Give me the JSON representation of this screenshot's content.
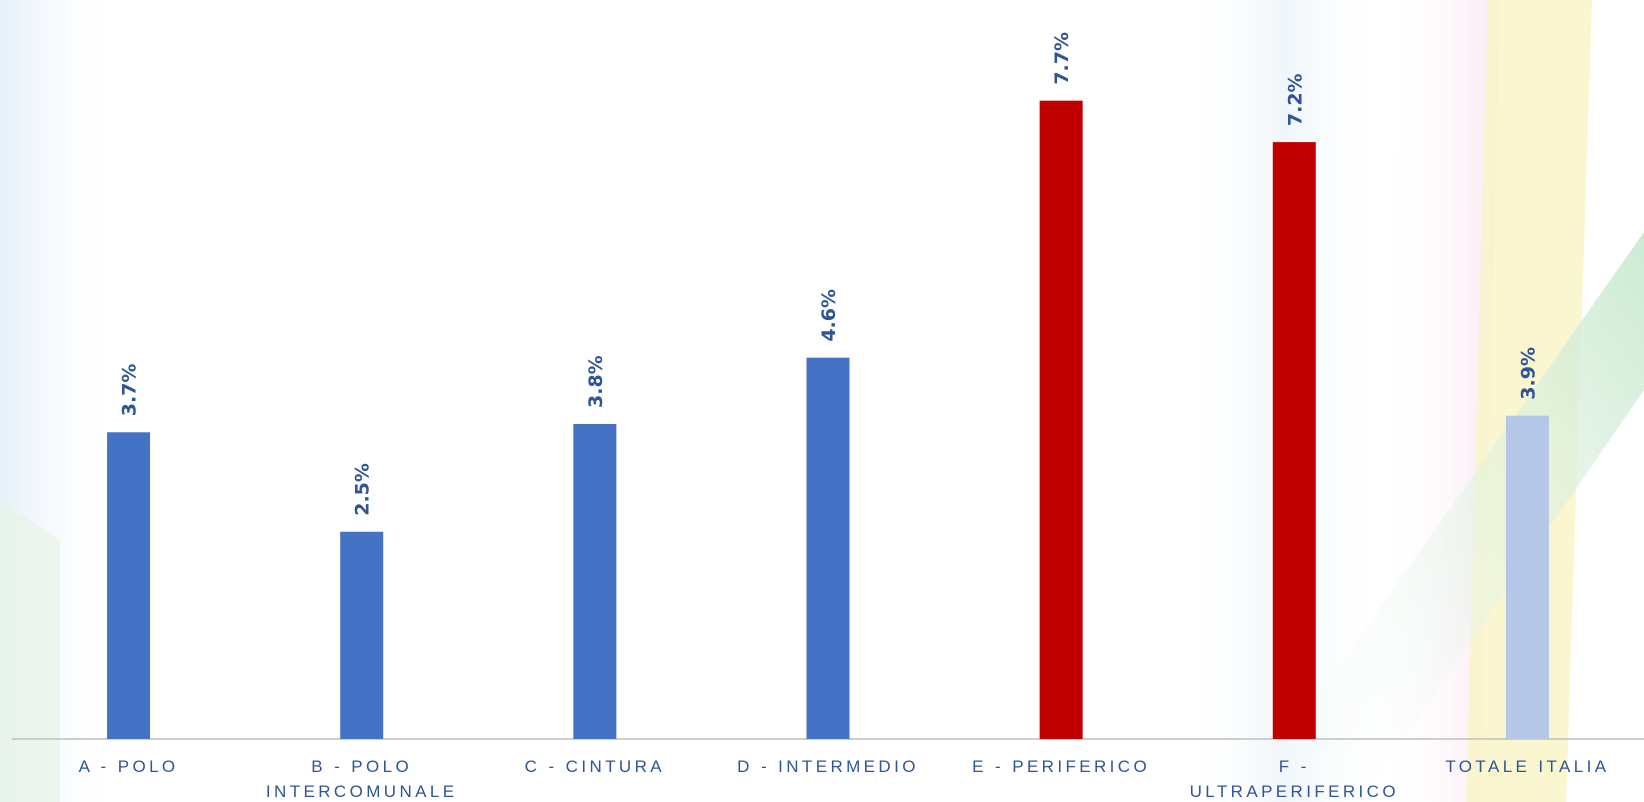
{
  "chart_data": {
    "type": "bar",
    "categories": [
      [
        "A - POLO"
      ],
      [
        "B - POLO",
        "INTERCOMUNALE"
      ],
      [
        "C - CINTURA"
      ],
      [
        "D - INTERMEDIO"
      ],
      [
        "E - PERIFERICO"
      ],
      [
        "F -",
        "ULTRAPERIFERICO"
      ],
      [
        "TOTALE ITALIA"
      ]
    ],
    "values": [
      3.7,
      2.5,
      3.8,
      4.6,
      7.7,
      7.2,
      3.9
    ],
    "value_labels": [
      "3.7%",
      "2.5%",
      "3.8%",
      "4.6%",
      "7.7%",
      "7.2%",
      "3.9%"
    ],
    "bar_colors": [
      "#4472C4",
      "#4472C4",
      "#4472C4",
      "#4472C4",
      "#C00000",
      "#C00000",
      "#B4C7E7"
    ],
    "ylim": [
      0,
      8.5
    ],
    "grid": false,
    "legend": "none"
  },
  "colors": {
    "value_label": "#2F5597",
    "category_label": "#2F5597",
    "axis_line": "#BFBFBF"
  }
}
